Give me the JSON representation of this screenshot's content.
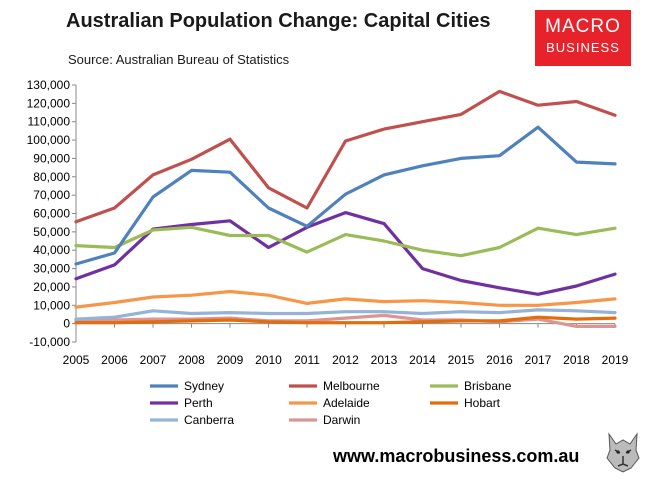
{
  "title": "Australian Population Change: Capital Cities",
  "source": "Source: Australian Bureau of Statistics",
  "logo": {
    "line1": "MACRO",
    "line2": "BUSINESS"
  },
  "website": "www.macrobusiness.com.au",
  "chart_data": {
    "type": "line",
    "title": "Australian Population Change: Capital Cities",
    "xlabel": "",
    "ylabel": "",
    "ylim": [
      -10000,
      130000
    ],
    "ytick_step": 10000,
    "categories": [
      "2005",
      "2006",
      "2007",
      "2008",
      "2009",
      "2010",
      "2011",
      "2012",
      "2013",
      "2014",
      "2015",
      "2016",
      "2017",
      "2018",
      "2019"
    ],
    "legend_position": "bottom",
    "series": [
      {
        "name": "Sydney",
        "color": "#4f81bd",
        "values": [
          32500,
          38500,
          69000,
          83500,
          82500,
          63000,
          53000,
          70500,
          81000,
          86000,
          90000,
          91500,
          107000,
          88000,
          87000
        ]
      },
      {
        "name": "Melbourne",
        "color": "#c0504d",
        "values": [
          55500,
          63000,
          81000,
          89500,
          100500,
          74000,
          63000,
          99500,
          106000,
          110000,
          114000,
          126500,
          119000,
          121000,
          113500
        ]
      },
      {
        "name": "Brisbane",
        "color": "#9bbb59",
        "values": [
          42500,
          41500,
          51000,
          52500,
          48000,
          48000,
          39000,
          48500,
          45000,
          40000,
          37000,
          41500,
          52000,
          48500,
          52000
        ]
      },
      {
        "name": "Perth",
        "color": "#7030a0",
        "values": [
          24500,
          32000,
          51500,
          54000,
          56000,
          41500,
          52500,
          60500,
          54500,
          30000,
          23500,
          19500,
          16000,
          20500,
          27000
        ]
      },
      {
        "name": "Adelaide",
        "color": "#f79646",
        "values": [
          9000,
          11500,
          14500,
          15500,
          17500,
          15500,
          11000,
          13500,
          12000,
          12500,
          11500,
          10000,
          10000,
          11500,
          13500
        ]
      },
      {
        "name": "Hobart",
        "color": "#e46c0a",
        "values": [
          500,
          500,
          1000,
          1500,
          2000,
          1000,
          500,
          500,
          500,
          1000,
          1500,
          1500,
          3500,
          2500,
          3000
        ]
      },
      {
        "name": "Canberra",
        "color": "#95b3d7",
        "values": [
          2500,
          3500,
          7000,
          5500,
          6000,
          5500,
          5500,
          6500,
          6500,
          5500,
          6500,
          6000,
          7500,
          7000,
          6000
        ]
      },
      {
        "name": "Darwin",
        "color": "#d99694",
        "values": [
          1500,
          2000,
          2500,
          2500,
          3000,
          1500,
          1500,
          3000,
          4500,
          2000,
          2000,
          1000,
          2500,
          -1500,
          -1500
        ]
      }
    ]
  }
}
